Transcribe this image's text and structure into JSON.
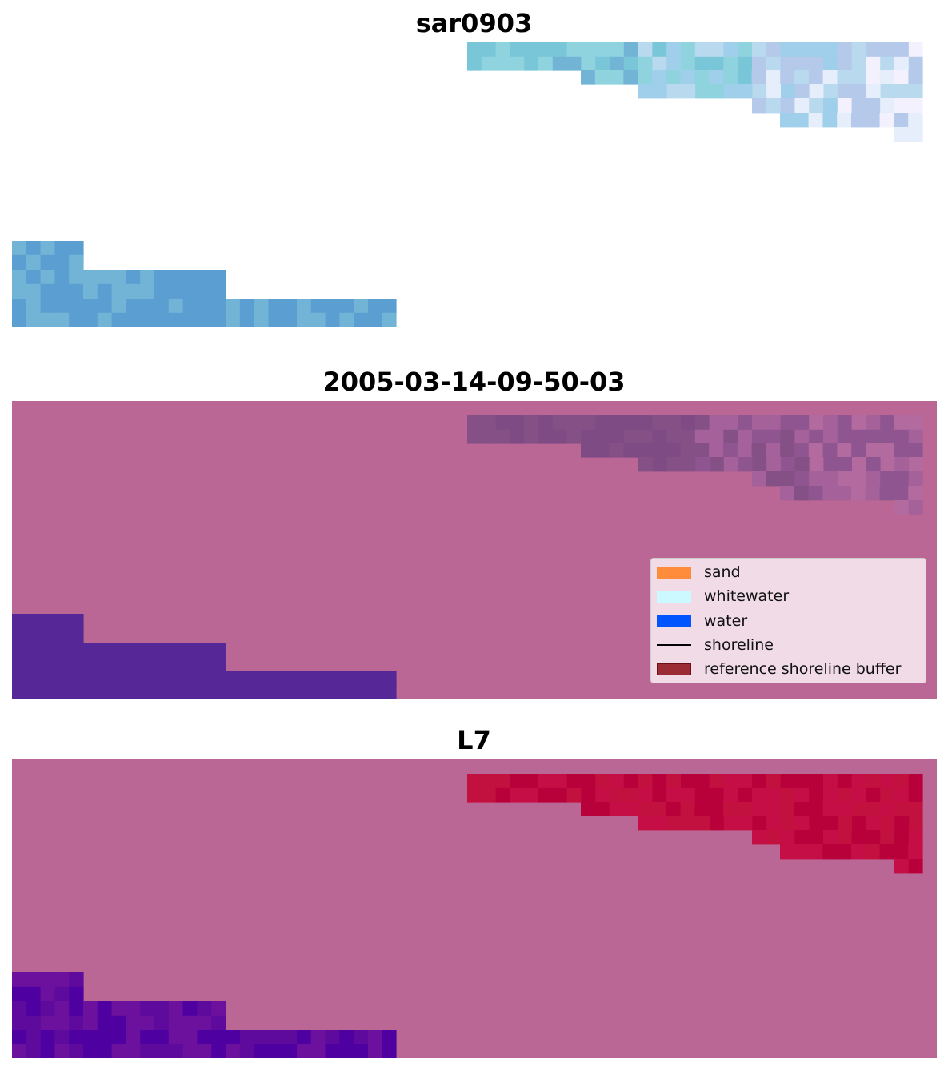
{
  "panels": [
    {
      "title": "sar0903",
      "palette": "sar"
    },
    {
      "title": "2005-03-14-09-50-03",
      "palette": "class"
    },
    {
      "title": "L7",
      "palette": "ndwi"
    }
  ],
  "legend": {
    "items": [
      {
        "label": "sand",
        "kind": "patch",
        "color": "#ff8c3a",
        "edge": ""
      },
      {
        "label": "whitewater",
        "kind": "patch",
        "color": "#ccf9ff",
        "edge": ""
      },
      {
        "label": "water",
        "kind": "patch",
        "color": "#0055ff",
        "edge": ""
      },
      {
        "label": "shoreline",
        "kind": "line",
        "color": "#000000",
        "edge": ""
      },
      {
        "label": "reference shoreline buffer",
        "kind": "patch",
        "color": "#9b2c35",
        "edge": "#6e0f18"
      }
    ]
  },
  "colors": {
    "background_mask": "#bb6795",
    "sar": [
      "#8fd3df",
      "#79c6d8",
      "#9fcfea",
      "#b9d9ef",
      "#e6eefb",
      "#f3f1fd",
      "#b5c9ea",
      "#5b9fd2",
      "#72b4d6"
    ],
    "class": [
      "#855086",
      "#7f4b85",
      "#8f5590",
      "#a4619a",
      "#b26a9f",
      "#552797"
    ],
    "ndwi": [
      "#c2103f",
      "#b8003a",
      "#c50e45",
      "#5e0a9c",
      "#6b119d",
      "#4e01a0"
    ]
  }
}
